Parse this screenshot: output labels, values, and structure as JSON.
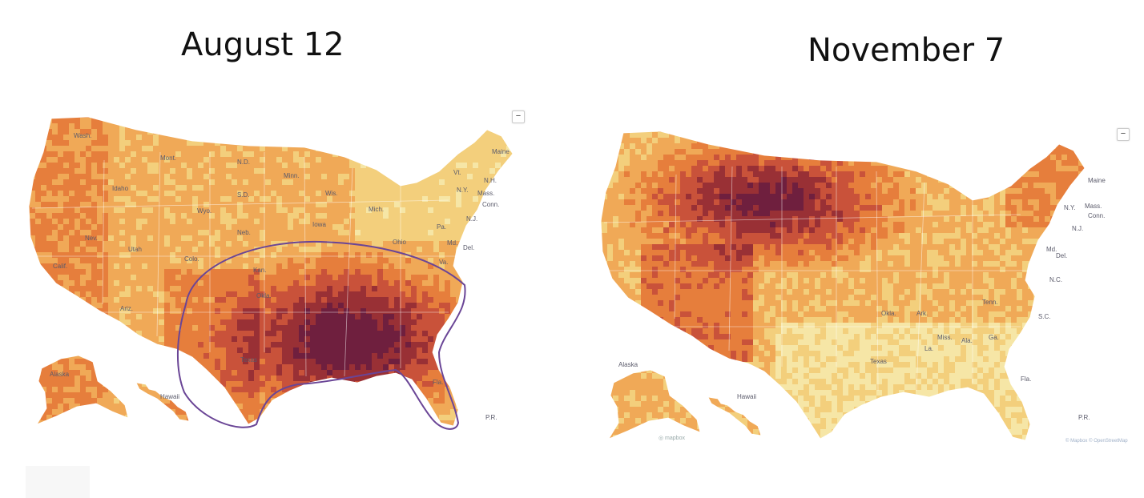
{
  "panels": [
    {
      "title": "August 12",
      "zoom_label": "−",
      "labels": [
        "Wash.",
        "Mont.",
        "N.D.",
        "Minn.",
        "Idaho",
        "S.D.",
        "Wis.",
        "Wyo.",
        "Mich.",
        "Nev.",
        "Neb.",
        "Iowa",
        "Ohio",
        "Pa.",
        "Utah",
        "Colo.",
        "Kan.",
        "Calif.",
        "Ariz.",
        "Okla.",
        "Texas",
        "Fla.",
        "Maine",
        "Vt.",
        "N.H.",
        "N.Y.",
        "Mass.",
        "Conn.",
        "N.J.",
        "Md.",
        "Del.",
        "Va.",
        "Alaska",
        "Hawaii",
        "P.R."
      ],
      "attribution": "",
      "logo": ""
    },
    {
      "title": "November 7",
      "zoom_label": "−",
      "labels": [
        "Maine",
        "N.Y.",
        "Mass.",
        "Conn.",
        "N.J.",
        "Md.",
        "Del.",
        "N.C.",
        "S.C.",
        "Tenn.",
        "Okla.",
        "Ark.",
        "Miss.",
        "Ala.",
        "Ga.",
        "La.",
        "Texas",
        "Fla.",
        "Alaska",
        "Hawaii",
        "P.R."
      ],
      "attribution": "© Mapbox © OpenStreetMap",
      "logo": "◎ mapbox"
    }
  ],
  "colors": {
    "scale": [
      "#f6e6a6",
      "#f3cf7c",
      "#f0a957",
      "#e67e3c",
      "#c9523a",
      "#993035",
      "#6f1f3e"
    ],
    "highlight_outline": "#6a4596",
    "no_data": "#f2f2f2"
  }
}
